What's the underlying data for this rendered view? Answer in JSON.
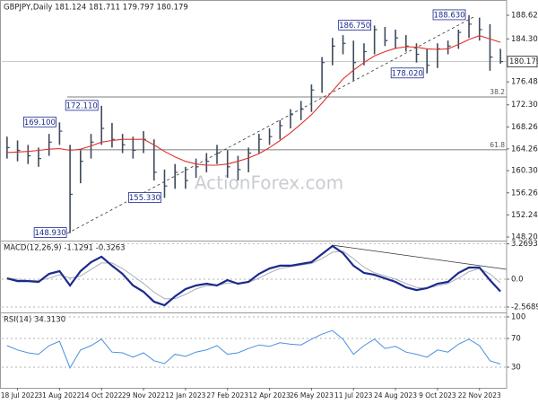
{
  "chart_data": [
    {
      "type": "ohlc",
      "title": "GBPJPY,Daily 181.124 181.711 179.797 180.179",
      "watermark": "ActionForex.com",
      "categories": [
        null,
        "18 Jul 2022",
        null,
        null,
        null,
        "31 Aug 2022",
        null,
        null,
        null,
        "14 Oct 2022",
        null,
        null,
        null,
        "29 Nov 2022",
        null,
        null,
        null,
        "12 Jan 2023",
        null,
        null,
        null,
        "27 Feb 2023",
        null,
        null,
        null,
        "12 Apr 2023",
        null,
        null,
        null,
        "26 May 2023",
        null,
        null,
        null,
        "11 Jul 2023",
        null,
        null,
        null,
        "24 Aug 2023",
        null,
        null,
        null,
        "9 Oct 2023",
        null,
        null,
        null,
        "22 Nov 2023",
        null,
        null
      ],
      "color": "#3d4b5c",
      "high": {
        "values": [
          166.5,
          165.8,
          165,
          164.5,
          167,
          169.1,
          165,
          164,
          167,
          172.11,
          169,
          167,
          166.5,
          167.5,
          166,
          160.5,
          161.5,
          161,
          162.5,
          163.5,
          165,
          164,
          163,
          164.5,
          167,
          168,
          169.5,
          171.5,
          173,
          176,
          181,
          184.5,
          185,
          184,
          183.5,
          186.75,
          186.5,
          186,
          185,
          183.5,
          182.5,
          183.5,
          184,
          186,
          188.63,
          188.2,
          187,
          182.5
        ],
        "value_labels": [
          null,
          null,
          null,
          null,
          null,
          "169.100",
          null,
          null,
          null,
          "172.110",
          null,
          null,
          null,
          null,
          null,
          null,
          null,
          null,
          null,
          null,
          null,
          null,
          null,
          null,
          null,
          null,
          null,
          null,
          null,
          null,
          null,
          null,
          null,
          null,
          null,
          "186.750",
          null,
          null,
          null,
          null,
          null,
          null,
          null,
          null,
          "188.630",
          null,
          null,
          null
        ]
      },
      "low": {
        "values": [
          162.5,
          162,
          161.5,
          161,
          163,
          165,
          148.93,
          158,
          162.5,
          165,
          164.5,
          163.5,
          162.5,
          163.5,
          158.5,
          155.33,
          157,
          157,
          159,
          160,
          161.5,
          159,
          158.5,
          160,
          163.5,
          165,
          166,
          168,
          169.5,
          171,
          174.5,
          179.5,
          181.5,
          176.7,
          179.5,
          181.5,
          183,
          182.5,
          182,
          180,
          178.02,
          179,
          181.5,
          182.5,
          184.5,
          184,
          178.5,
          179.797
        ],
        "value_labels": [
          null,
          null,
          null,
          null,
          null,
          null,
          "148.930",
          null,
          null,
          null,
          null,
          null,
          null,
          null,
          null,
          "155.330",
          null,
          null,
          null,
          null,
          null,
          null,
          null,
          null,
          null,
          null,
          null,
          null,
          null,
          null,
          null,
          null,
          null,
          null,
          null,
          null,
          null,
          null,
          null,
          null,
          "178.020",
          null,
          null,
          null,
          null,
          null,
          null,
          null
        ]
      },
      "close": {
        "values": [
          164.5,
          164,
          163,
          162.5,
          165.5,
          167.5,
          156,
          162,
          165.5,
          168,
          166,
          165,
          164,
          166,
          160,
          157.5,
          160,
          158.5,
          161,
          162,
          163.5,
          161,
          160.5,
          163.5,
          166,
          166.5,
          168.5,
          170.5,
          171.5,
          175,
          180,
          183,
          183.5,
          180,
          182,
          186,
          184,
          184.5,
          183,
          181.5,
          179.5,
          182.5,
          183,
          185.5,
          187,
          186,
          181,
          180.179
        ]
      },
      "ma": {
        "color": "#e0302a",
        "values": [
          163.6,
          163.7,
          163.8,
          164,
          164.2,
          164.3,
          164,
          164.2,
          164.8,
          165.5,
          165.8,
          166,
          166,
          166,
          165,
          163.8,
          162.8,
          162,
          161.5,
          161.3,
          161.3,
          161.5,
          162,
          162.6,
          163.4,
          164.5,
          165.8,
          167.2,
          168.8,
          170.5,
          172.6,
          174.8,
          177,
          178.6,
          180,
          181.2,
          182,
          182.6,
          182.9,
          182.8,
          182.5,
          182.4,
          182.5,
          183.3,
          184.2,
          184.9,
          184.3,
          183.7
        ]
      },
      "current_price": 180.179,
      "fib_levels": [
        {
          "label": "38.2",
          "value": 173.73
        },
        {
          "label": "61.8",
          "value": 164.1
        }
      ],
      "ylim": [
        147.55,
        190.91
      ],
      "yticks": [
        {
          "value": 188.62,
          "label": "188.620"
        },
        {
          "value": 184.3,
          "label": "184.300"
        },
        {
          "value": 176.48,
          "label": "176.480"
        },
        {
          "value": 172.3,
          "label": "172.300"
        },
        {
          "value": 168.26,
          "label": "168.260"
        },
        {
          "value": 164.26,
          "label": "164.260"
        },
        {
          "value": 160.3,
          "label": "160.300"
        },
        {
          "value": 156.26,
          "label": "156.260"
        },
        {
          "value": 152.24,
          "label": "152.240"
        },
        {
          "value": 148.2,
          "label": "148.200"
        }
      ]
    },
    {
      "type": "line",
      "title": "MACD(12,26,9) -1.1291 -0.3263",
      "series": [
        {
          "color": "#1c2a8c",
          "width": 2.2,
          "values": [
            0.08,
            -0.17,
            -0.17,
            -0.25,
            0.5,
            0.75,
            -0.58,
            0.75,
            1.58,
            2.08,
            1.25,
            0.5,
            -0.58,
            -1.16,
            -2.08,
            -2.4,
            -1.58,
            -0.91,
            -0.58,
            -0.41,
            -0.58,
            -0.08,
            -0.41,
            -0.25,
            0.5,
            1.0,
            1.25,
            1.25,
            1.41,
            1.58,
            2.32,
            3.07,
            2.41,
            1.25,
            0.58,
            0.41,
            0.08,
            -0.25,
            -0.75,
            -1.0,
            -0.83,
            -0.41,
            -0.25,
            0.58,
            1.08,
            1.08,
            -0.08,
            -1.1291
          ]
        },
        {
          "color": "#a9aebd",
          "width": 1,
          "values": [
            0.1,
            0.0,
            -0.1,
            -0.15,
            0.1,
            0.4,
            0.1,
            0.3,
            0.9,
            1.5,
            1.5,
            1.0,
            0.3,
            -0.4,
            -1.2,
            -1.8,
            -1.8,
            -1.4,
            -0.9,
            -0.6,
            -0.55,
            -0.35,
            -0.35,
            -0.3,
            0.1,
            0.6,
            1.0,
            1.15,
            1.3,
            1.45,
            1.9,
            2.5,
            2.6,
            1.9,
            1.1,
            0.6,
            0.3,
            0.0,
            -0.4,
            -0.75,
            -0.85,
            -0.6,
            -0.4,
            0.1,
            0.7,
            1.0,
            0.5,
            -0.3263
          ]
        }
      ],
      "ylim": [
        -2.9,
        3.4
      ],
      "yticks": [
        3.2693,
        {
          "value": 0,
          "label": "0.0"
        },
        -2.5689
      ]
    },
    {
      "type": "line",
      "title": "RSI(14) 34.3130",
      "series": [
        {
          "color": "#4a90e2",
          "width": 1,
          "values": [
            60,
            54,
            50,
            48,
            60,
            66,
            29,
            54,
            60,
            69,
            51,
            50,
            44,
            50,
            39,
            35,
            48,
            45,
            51,
            54,
            60,
            48,
            50,
            56,
            61,
            59,
            64,
            62,
            61,
            69,
            76,
            81,
            69,
            48,
            60,
            69,
            56,
            59,
            51,
            48,
            44,
            54,
            51,
            62,
            69,
            60,
            39,
            34.313
          ]
        }
      ],
      "ylim": [
        0,
        100
      ],
      "yticks": [
        100,
        70,
        30
      ]
    }
  ]
}
